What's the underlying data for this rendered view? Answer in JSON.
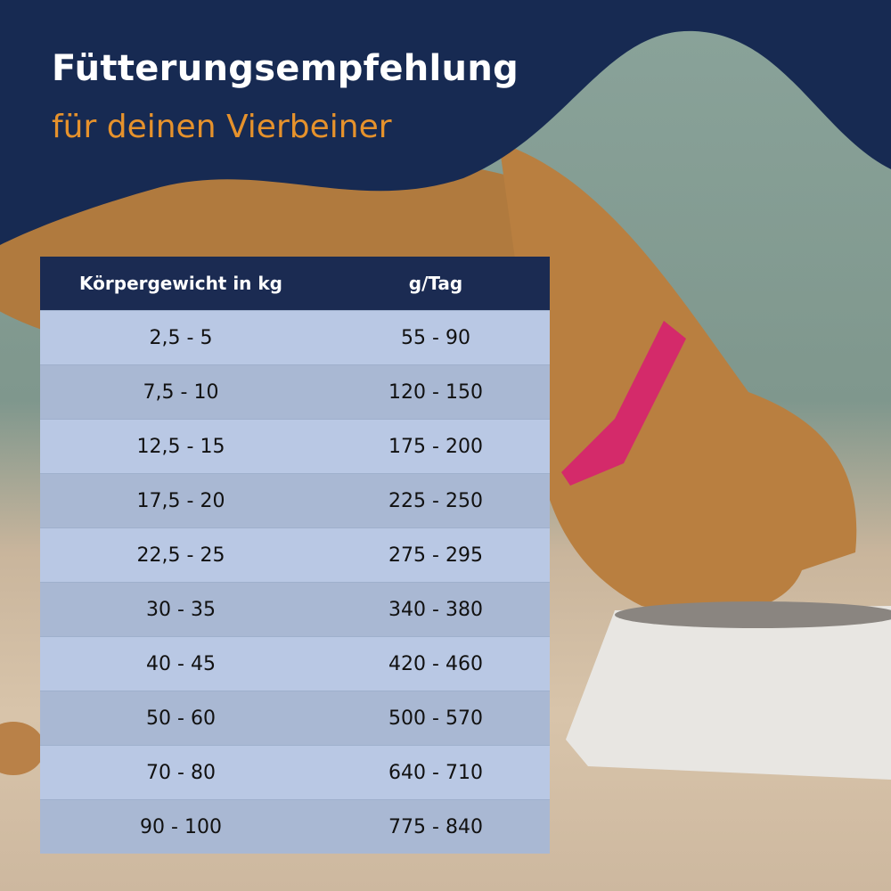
{
  "header": {
    "title": "Fütterungsempfehlung",
    "subtitle": "für deinen Vierbeiner"
  },
  "colors": {
    "navy": "#172a52",
    "accent": "#e6922c",
    "row_light": "#b9c8e4",
    "row_dark": "#a9b8d3"
  },
  "table": {
    "columns": [
      "Körpergewicht in kg",
      "g/Tag"
    ],
    "rows": [
      [
        "2,5 - 5",
        "55 - 90"
      ],
      [
        "7,5 - 10",
        "120 - 150"
      ],
      [
        "12,5 - 15",
        "175 - 200"
      ],
      [
        "17,5 - 20",
        "225 - 250"
      ],
      [
        "22,5 - 25",
        "275 - 295"
      ],
      [
        "30 - 35",
        "340 - 380"
      ],
      [
        "40 - 45",
        "420 - 460"
      ],
      [
        "50 - 60",
        "500 - 570"
      ],
      [
        "70 - 80",
        "640 - 710"
      ],
      [
        "90 - 100",
        "775 - 840"
      ]
    ]
  }
}
